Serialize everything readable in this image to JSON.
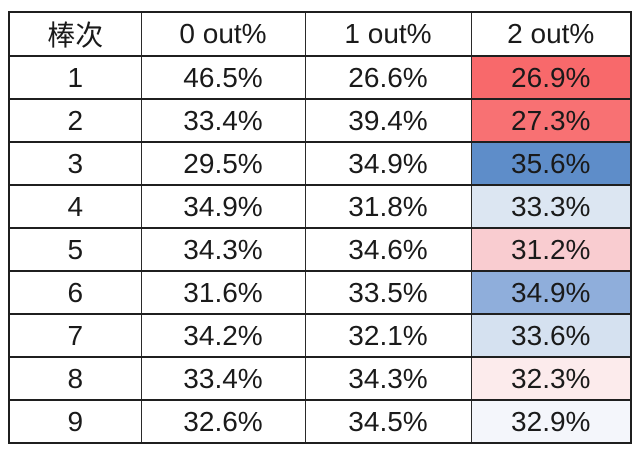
{
  "chart_data": {
    "type": "table",
    "columns": [
      "棒次",
      "0 out%",
      "1 out%",
      "2 out%"
    ],
    "rows": [
      [
        "1",
        "46.5%",
        "26.6%",
        "26.9%"
      ],
      [
        "2",
        "33.4%",
        "39.4%",
        "27.3%"
      ],
      [
        "3",
        "29.5%",
        "34.9%",
        "35.6%"
      ],
      [
        "4",
        "34.9%",
        "31.8%",
        "33.3%"
      ],
      [
        "5",
        "34.3%",
        "34.6%",
        "31.2%"
      ],
      [
        "6",
        "31.6%",
        "33.5%",
        "34.9%"
      ],
      [
        "7",
        "34.2%",
        "32.1%",
        "33.6%"
      ],
      [
        "8",
        "33.4%",
        "34.3%",
        "32.3%"
      ],
      [
        "9",
        "32.6%",
        "34.5%",
        "32.9%"
      ]
    ],
    "conditional_formatting": {
      "column": "2 out%",
      "style": "3-color scale: red = low, white = mid, blue = high",
      "cell_colors": [
        "#F8696B",
        "#F87173",
        "#5E8DC9",
        "#DCE6F2",
        "#F9CCD0",
        "#8FAEDB",
        "#D5E1F0",
        "#FCEBEC",
        "#F4F6FB"
      ]
    },
    "layout": {
      "grid": "on",
      "header_bg": "#FFFFFF",
      "border_color": "#1F1F1F",
      "text_color": "#1A1A1A"
    }
  }
}
